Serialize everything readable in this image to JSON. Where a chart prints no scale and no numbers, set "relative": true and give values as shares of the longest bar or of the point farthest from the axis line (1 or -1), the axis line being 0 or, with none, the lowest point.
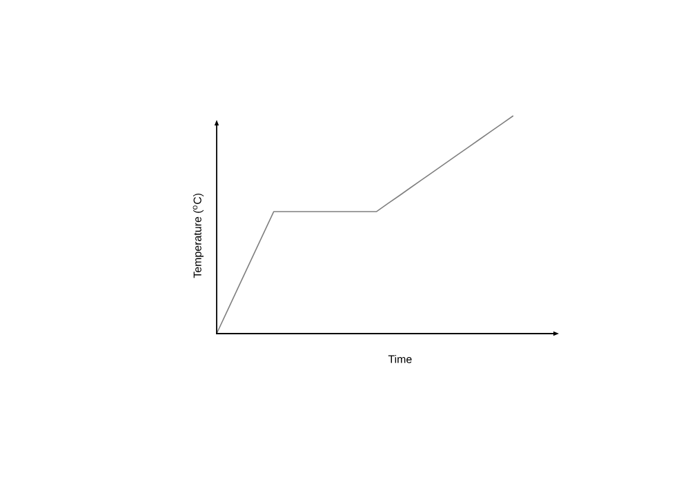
{
  "chart_data": {
    "type": "line",
    "relative": true,
    "xlabel": "Time",
    "ylabel": "Temperature ($^{o}$C)",
    "categories": [
      null,
      null,
      null,
      null,
      null,
      null,
      null,
      null,
      null,
      null,
      null,
      null,
      null,
      null,
      null,
      null,
      null,
      null,
      null,
      null,
      null,
      null,
      null,
      null,
      null,
      null,
      null
    ],
    "values": [
      0,
      0.112,
      0.224,
      0.336,
      0.448,
      0.56,
      0.56,
      0.56,
      0.56,
      0.56,
      0.56,
      0.56,
      0.56,
      0.56,
      0.56,
      0.597,
      0.633,
      0.67,
      0.707,
      0.743,
      0.78,
      0.817,
      0.853,
      0.89,
      0.927,
      0.963,
      1
    ],
    "color": "#7f7f7f"
  }
}
